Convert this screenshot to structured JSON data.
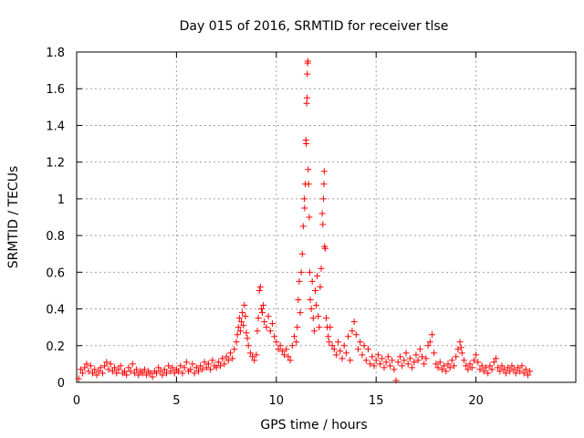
{
  "chart_data": {
    "type": "scatter",
    "title": "Day 015 of 2016, SRMTID for receiver tlse",
    "xlabel": "GPS time / hours",
    "ylabel": "SRMTID / TECUs",
    "xlim": [
      0,
      25
    ],
    "ylim": [
      0,
      1.8
    ],
    "xticks": [
      0,
      5,
      10,
      15,
      20
    ],
    "xtick_labels": [
      "0",
      "5",
      "10",
      "15",
      "20"
    ],
    "yticks": [
      0,
      0.2,
      0.4,
      0.6,
      0.8,
      1.0,
      1.2,
      1.4,
      1.6,
      1.8
    ],
    "ytick_labels": [
      "0",
      "0.2",
      "0.4",
      "0.6",
      "0.8",
      "1",
      "1.2",
      "1.4",
      "1.6",
      "1.8"
    ],
    "grid": true,
    "marker": "+",
    "color": "#ff0000",
    "series": [
      {
        "name": "tlse",
        "points": [
          [
            0.1,
            0.02
          ],
          [
            0.2,
            0.07
          ],
          [
            0.3,
            0.05
          ],
          [
            0.4,
            0.08
          ],
          [
            0.5,
            0.1
          ],
          [
            0.6,
            0.06
          ],
          [
            0.7,
            0.09
          ],
          [
            0.8,
            0.05
          ],
          [
            0.9,
            0.07
          ],
          [
            1.0,
            0.04
          ],
          [
            1.1,
            0.06
          ],
          [
            1.2,
            0.08
          ],
          [
            1.3,
            0.05
          ],
          [
            1.4,
            0.09
          ],
          [
            1.5,
            0.11
          ],
          [
            1.6,
            0.07
          ],
          [
            1.7,
            0.1
          ],
          [
            1.8,
            0.06
          ],
          [
            1.9,
            0.08
          ],
          [
            2.0,
            0.05
          ],
          [
            2.1,
            0.07
          ],
          [
            2.2,
            0.09
          ],
          [
            2.3,
            0.05
          ],
          [
            2.4,
            0.06
          ],
          [
            2.5,
            0.04
          ],
          [
            2.6,
            0.08
          ],
          [
            2.7,
            0.06
          ],
          [
            2.8,
            0.1
          ],
          [
            2.9,
            0.05
          ],
          [
            3.0,
            0.07
          ],
          [
            3.1,
            0.04
          ],
          [
            3.2,
            0.06
          ],
          [
            3.3,
            0.05
          ],
          [
            3.4,
            0.07
          ],
          [
            3.5,
            0.04
          ],
          [
            3.6,
            0.06
          ],
          [
            3.7,
            0.05
          ],
          [
            3.8,
            0.03
          ],
          [
            3.9,
            0.06
          ],
          [
            4.0,
            0.05
          ],
          [
            4.1,
            0.08
          ],
          [
            4.2,
            0.06
          ],
          [
            4.3,
            0.04
          ],
          [
            4.4,
            0.07
          ],
          [
            4.5,
            0.05
          ],
          [
            4.6,
            0.09
          ],
          [
            4.7,
            0.06
          ],
          [
            4.8,
            0.08
          ],
          [
            4.9,
            0.05
          ],
          [
            5.0,
            0.07
          ],
          [
            5.1,
            0.06
          ],
          [
            5.2,
            0.09
          ],
          [
            5.3,
            0.05
          ],
          [
            5.4,
            0.08
          ],
          [
            5.5,
            0.11
          ],
          [
            5.6,
            0.06
          ],
          [
            5.7,
            0.07
          ],
          [
            5.8,
            0.1
          ],
          [
            5.9,
            0.05
          ],
          [
            6.0,
            0.08
          ],
          [
            6.1,
            0.06
          ],
          [
            6.2,
            0.09
          ],
          [
            6.3,
            0.07
          ],
          [
            6.4,
            0.11
          ],
          [
            6.5,
            0.08
          ],
          [
            6.6,
            0.1
          ],
          [
            6.7,
            0.07
          ],
          [
            6.8,
            0.12
          ],
          [
            6.9,
            0.09
          ],
          [
            7.0,
            0.08
          ],
          [
            7.1,
            0.11
          ],
          [
            7.2,
            0.09
          ],
          [
            7.3,
            0.13
          ],
          [
            7.4,
            0.1
          ],
          [
            7.5,
            0.14
          ],
          [
            7.6,
            0.12
          ],
          [
            7.7,
            0.16
          ],
          [
            7.8,
            0.13
          ],
          [
            7.9,
            0.18
          ],
          [
            8.0,
            0.22
          ],
          [
            8.05,
            0.26
          ],
          [
            8.1,
            0.3
          ],
          [
            8.15,
            0.35
          ],
          [
            8.2,
            0.28
          ],
          [
            8.25,
            0.33
          ],
          [
            8.3,
            0.38
          ],
          [
            8.35,
            0.31
          ],
          [
            8.4,
            0.42
          ],
          [
            8.45,
            0.36
          ],
          [
            8.5,
            0.27
          ],
          [
            8.55,
            0.24
          ],
          [
            8.6,
            0.2
          ],
          [
            8.7,
            0.16
          ],
          [
            8.8,
            0.14
          ],
          [
            8.9,
            0.12
          ],
          [
            9.0,
            0.15
          ],
          [
            9.05,
            0.28
          ],
          [
            9.1,
            0.35
          ],
          [
            9.15,
            0.5
          ],
          [
            9.2,
            0.52
          ],
          [
            9.25,
            0.4
          ],
          [
            9.3,
            0.38
          ],
          [
            9.35,
            0.42
          ],
          [
            9.4,
            0.33
          ],
          [
            9.5,
            0.3
          ],
          [
            9.6,
            0.36
          ],
          [
            9.7,
            0.28
          ],
          [
            9.8,
            0.32
          ],
          [
            9.9,
            0.25
          ],
          [
            10.0,
            0.22
          ],
          [
            10.1,
            0.18
          ],
          [
            10.2,
            0.2
          ],
          [
            10.3,
            0.17
          ],
          [
            10.4,
            0.15
          ],
          [
            10.5,
            0.18
          ],
          [
            10.6,
            0.14
          ],
          [
            10.7,
            0.12
          ],
          [
            10.8,
            0.2
          ],
          [
            10.9,
            0.25
          ],
          [
            11.0,
            0.22
          ],
          [
            11.05,
            0.3
          ],
          [
            11.1,
            0.45
          ],
          [
            11.15,
            0.55
          ],
          [
            11.2,
            0.38
          ],
          [
            11.25,
            0.6
          ],
          [
            11.3,
            0.7
          ],
          [
            11.35,
            0.85
          ],
          [
            11.4,
            1.0
          ],
          [
            11.42,
            0.95
          ],
          [
            11.45,
            1.08
          ],
          [
            11.48,
            1.32
          ],
          [
            11.5,
            1.3
          ],
          [
            11.52,
            1.52
          ],
          [
            11.54,
            1.55
          ],
          [
            11.55,
            1.68
          ],
          [
            11.57,
            1.74
          ],
          [
            11.58,
            1.75
          ],
          [
            11.6,
            1.16
          ],
          [
            11.62,
            1.08
          ],
          [
            11.65,
            0.9
          ],
          [
            11.68,
            0.6
          ],
          [
            11.7,
            0.45
          ],
          [
            11.75,
            0.4
          ],
          [
            11.8,
            0.55
          ],
          [
            11.85,
            0.35
          ],
          [
            11.9,
            0.28
          ],
          [
            11.95,
            0.5
          ],
          [
            12.0,
            0.42
          ],
          [
            12.05,
            0.58
          ],
          [
            12.1,
            0.36
          ],
          [
            12.15,
            0.3
          ],
          [
            12.2,
            0.52
          ],
          [
            12.25,
            0.62
          ],
          [
            12.3,
            0.92
          ],
          [
            12.33,
            0.86
          ],
          [
            12.36,
            1.0
          ],
          [
            12.38,
            1.08
          ],
          [
            12.4,
            1.15
          ],
          [
            12.42,
            0.74
          ],
          [
            12.45,
            0.73
          ],
          [
            12.5,
            0.35
          ],
          [
            12.55,
            0.3
          ],
          [
            12.6,
            0.25
          ],
          [
            12.65,
            0.22
          ],
          [
            12.7,
            0.3
          ],
          [
            12.8,
            0.2
          ],
          [
            12.9,
            0.18
          ],
          [
            13.0,
            0.15
          ],
          [
            13.1,
            0.22
          ],
          [
            13.2,
            0.17
          ],
          [
            13.3,
            0.13
          ],
          [
            13.4,
            0.2
          ],
          [
            13.5,
            0.16
          ],
          [
            13.6,
            0.25
          ],
          [
            13.7,
            0.12
          ],
          [
            13.8,
            0.28
          ],
          [
            13.9,
            0.33
          ],
          [
            14.0,
            0.26
          ],
          [
            14.1,
            0.18
          ],
          [
            14.2,
            0.22
          ],
          [
            14.3,
            0.15
          ],
          [
            14.4,
            0.2
          ],
          [
            14.5,
            0.12
          ],
          [
            14.6,
            0.18
          ],
          [
            14.7,
            0.1
          ],
          [
            14.8,
            0.14
          ],
          [
            14.9,
            0.09
          ],
          [
            15.0,
            0.12
          ],
          [
            15.1,
            0.15
          ],
          [
            15.2,
            0.1
          ],
          [
            15.3,
            0.13
          ],
          [
            15.4,
            0.08
          ],
          [
            15.5,
            0.11
          ],
          [
            15.6,
            0.14
          ],
          [
            15.7,
            0.09
          ],
          [
            15.8,
            0.12
          ],
          [
            15.9,
            0.07
          ],
          [
            16.0,
            0.01
          ],
          [
            16.1,
            0.11
          ],
          [
            16.2,
            0.14
          ],
          [
            16.3,
            0.09
          ],
          [
            16.4,
            0.12
          ],
          [
            16.5,
            0.16
          ],
          [
            16.6,
            0.1
          ],
          [
            16.7,
            0.13
          ],
          [
            16.8,
            0.08
          ],
          [
            16.9,
            0.11
          ],
          [
            17.0,
            0.15
          ],
          [
            17.1,
            0.12
          ],
          [
            17.2,
            0.18
          ],
          [
            17.3,
            0.14
          ],
          [
            17.4,
            0.1
          ],
          [
            17.5,
            0.13
          ],
          [
            17.6,
            0.2
          ],
          [
            17.7,
            0.22
          ],
          [
            17.8,
            0.26
          ],
          [
            17.9,
            0.16
          ],
          [
            18.0,
            0.1
          ],
          [
            18.1,
            0.08
          ],
          [
            18.2,
            0.11
          ],
          [
            18.3,
            0.07
          ],
          [
            18.4,
            0.09
          ],
          [
            18.5,
            0.06
          ],
          [
            18.6,
            0.1
          ],
          [
            18.7,
            0.08
          ],
          [
            18.8,
            0.12
          ],
          [
            18.9,
            0.09
          ],
          [
            19.0,
            0.14
          ],
          [
            19.1,
            0.18
          ],
          [
            19.2,
            0.22
          ],
          [
            19.25,
            0.19
          ],
          [
            19.3,
            0.16
          ],
          [
            19.4,
            0.12
          ],
          [
            19.5,
            0.09
          ],
          [
            19.6,
            0.07
          ],
          [
            19.7,
            0.1
          ],
          [
            19.8,
            0.08
          ],
          [
            19.9,
            0.12
          ],
          [
            20.0,
            0.15
          ],
          [
            20.1,
            0.11
          ],
          [
            20.2,
            0.07
          ],
          [
            20.3,
            0.09
          ],
          [
            20.4,
            0.06
          ],
          [
            20.5,
            0.08
          ],
          [
            20.6,
            0.05
          ],
          [
            20.7,
            0.09
          ],
          [
            20.8,
            0.07
          ],
          [
            20.9,
            0.11
          ],
          [
            21.0,
            0.13
          ],
          [
            21.1,
            0.08
          ],
          [
            21.2,
            0.06
          ],
          [
            21.3,
            0.09
          ],
          [
            21.4,
            0.07
          ],
          [
            21.5,
            0.05
          ],
          [
            21.6,
            0.08
          ],
          [
            21.7,
            0.06
          ],
          [
            21.8,
            0.09
          ],
          [
            21.9,
            0.07
          ],
          [
            22.0,
            0.05
          ],
          [
            22.1,
            0.08
          ],
          [
            22.2,
            0.06
          ],
          [
            22.3,
            0.09
          ],
          [
            22.4,
            0.05
          ],
          [
            22.5,
            0.07
          ],
          [
            22.6,
            0.04
          ],
          [
            22.7,
            0.06
          ]
        ]
      }
    ]
  }
}
